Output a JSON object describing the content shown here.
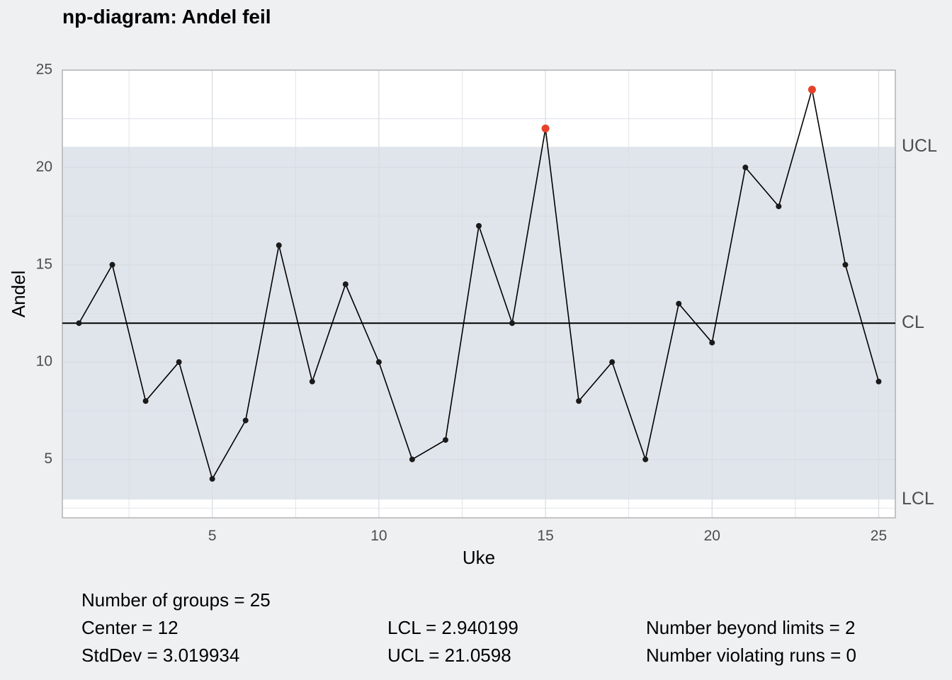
{
  "chart_data": {
    "type": "line",
    "title": "np-diagram: Andel feil",
    "xlabel": "Uke",
    "ylabel": "Andel",
    "xlim": [
      0.5,
      25.5
    ],
    "ylim": [
      2,
      25
    ],
    "x_ticks": [
      5,
      10,
      15,
      20,
      25
    ],
    "y_ticks": [
      5,
      10,
      15,
      20,
      25
    ],
    "grid": true,
    "x": [
      1,
      2,
      3,
      4,
      5,
      6,
      7,
      8,
      9,
      10,
      11,
      12,
      13,
      14,
      15,
      16,
      17,
      18,
      19,
      20,
      21,
      22,
      23,
      24,
      25
    ],
    "values": [
      12,
      15,
      8,
      10,
      4,
      7,
      16,
      9,
      14,
      10,
      5,
      6,
      17,
      12,
      22,
      8,
      10,
      5,
      13,
      11,
      20,
      18,
      24,
      15,
      9
    ],
    "center": 12,
    "lcl": 2.940199,
    "ucl": 21.0598,
    "limit_labels": {
      "ucl": "UCL",
      "cl": "CL",
      "lcl": "LCL"
    },
    "colors": {
      "band": "#e0e5ec",
      "panel": "#ffffff",
      "line": "#000000",
      "point": "#1a1a1a",
      "out_of_control": "#e8412a",
      "grid": "#d9dce1",
      "frame": "#b3b3b3"
    }
  },
  "summary": {
    "groups": "Number of groups = 25",
    "center": "Center = 12",
    "stddev": "StdDev = 3.019934",
    "lcl": "LCL = 2.940199",
    "ucl": "UCL = 21.0598",
    "beyond": "Number beyond limits = 2",
    "runs": "Number violating runs = 0"
  }
}
